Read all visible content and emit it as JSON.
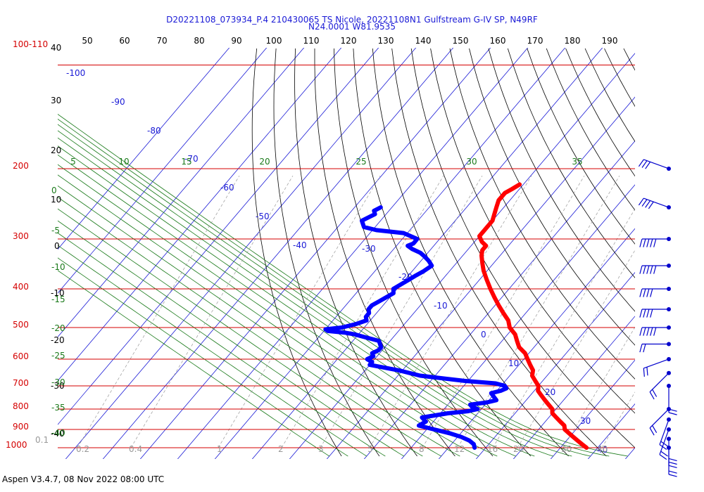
{
  "header": {
    "title_line1": "D20221108_073934_P.4 210430065 TS Nicole, 20221108N1 Gulfstream G-IV SP, N49RF",
    "title_line2": "N24.0001 W81.9535"
  },
  "footer": {
    "text": "Aspen V3.4.7, 08 Nov 2022  08:00 UTC"
  },
  "colors": {
    "isobar": "#d40000",
    "isotherm": "#1a1ad6",
    "dry_adiabat": "#000000",
    "moist_adiabat": "#1a7a1a",
    "mixing_ratio": "#999999",
    "temperature": "#ff0000",
    "dewpoint": "#0000ff",
    "wind": "#0000cc"
  },
  "chart_data": {
    "type": "skew-t",
    "pressure_labels": [
      "100-110",
      "200",
      "300",
      "400",
      "500",
      "600",
      "700",
      "800",
      "900",
      "1000"
    ],
    "top_scale_labels": [
      "50",
      "60",
      "70",
      "80",
      "90",
      "100",
      "110",
      "120",
      "130",
      "140",
      "150",
      "160",
      "170",
      "180",
      "190"
    ],
    "height_labels": [
      "40",
      "30",
      "20",
      "10",
      "0",
      "-10",
      "-20",
      "-30",
      "-40"
    ],
    "isotherm_labels": [
      "-100",
      "-90",
      "-80",
      "-70",
      "-60",
      "-50",
      "-40",
      "-30",
      "-20",
      "-10",
      "0",
      "10",
      "20",
      "30",
      "40"
    ],
    "moist_top_labels": [
      "5",
      "10",
      "15",
      "20",
      "25",
      "30",
      "35"
    ],
    "moist_left_labels": [
      "0",
      "-5",
      "-10",
      "-15",
      "-20",
      "-25",
      "-30",
      "-35",
      "-40"
    ],
    "mixing_ratio_labels": [
      "0.1",
      "0.2",
      "0.4",
      "1",
      "2",
      "3",
      "5",
      "8",
      "12",
      "16",
      "20",
      "30",
      "40"
    ],
    "temperature": [
      [
        219,
        -51
      ],
      [
        225,
        -52
      ],
      [
        230,
        -53
      ],
      [
        240,
        -53
      ],
      [
        250,
        -52
      ],
      [
        260,
        -51
      ],
      [
        270,
        -50
      ],
      [
        285,
        -50
      ],
      [
        295,
        -50
      ],
      [
        300,
        -49
      ],
      [
        305,
        -48
      ],
      [
        312,
        -46
      ],
      [
        320,
        -46
      ],
      [
        330,
        -45
      ],
      [
        345,
        -43
      ],
      [
        360,
        -41
      ],
      [
        380,
        -38
      ],
      [
        400,
        -35
      ],
      [
        420,
        -32
      ],
      [
        440,
        -29
      ],
      [
        460,
        -26
      ],
      [
        480,
        -23
      ],
      [
        500,
        -21
      ],
      [
        520,
        -18
      ],
      [
        540,
        -16
      ],
      [
        560,
        -14
      ],
      [
        580,
        -11
      ],
      [
        600,
        -9
      ],
      [
        620,
        -7
      ],
      [
        640,
        -5
      ],
      [
        660,
        -4
      ],
      [
        680,
        -2
      ],
      [
        700,
        0
      ],
      [
        720,
        1
      ],
      [
        740,
        3
      ],
      [
        760,
        5
      ],
      [
        780,
        7
      ],
      [
        800,
        9
      ],
      [
        820,
        10
      ],
      [
        840,
        12
      ],
      [
        860,
        14
      ],
      [
        880,
        16
      ],
      [
        900,
        17
      ],
      [
        920,
        19
      ],
      [
        940,
        21
      ],
      [
        960,
        23
      ],
      [
        980,
        25
      ],
      [
        1000,
        27
      ]
    ],
    "dewpoint": [
      [
        250,
        -83
      ],
      [
        255,
        -84
      ],
      [
        260,
        -83
      ],
      [
        270,
        -85
      ],
      [
        280,
        -83
      ],
      [
        285,
        -79
      ],
      [
        290,
        -71
      ],
      [
        300,
        -66
      ],
      [
        305,
        -66
      ],
      [
        308,
        -66
      ],
      [
        312,
        -67
      ],
      [
        318,
        -65
      ],
      [
        325,
        -62
      ],
      [
        332,
        -60
      ],
      [
        340,
        -58
      ],
      [
        350,
        -56
      ],
      [
        362,
        -57
      ],
      [
        370,
        -58
      ],
      [
        380,
        -59
      ],
      [
        390,
        -60
      ],
      [
        400,
        -61
      ],
      [
        410,
        -60
      ],
      [
        420,
        -61
      ],
      [
        430,
        -62
      ],
      [
        440,
        -63
      ],
      [
        450,
        -63
      ],
      [
        460,
        -62
      ],
      [
        470,
        -62
      ],
      [
        480,
        -61
      ],
      [
        490,
        -63
      ],
      [
        500,
        -66
      ],
      [
        505,
        -70
      ],
      [
        510,
        -69
      ],
      [
        515,
        -64
      ],
      [
        520,
        -61
      ],
      [
        525,
        -59
      ],
      [
        540,
        -53
      ],
      [
        550,
        -52
      ],
      [
        560,
        -51
      ],
      [
        570,
        -51
      ],
      [
        580,
        -52
      ],
      [
        590,
        -51
      ],
      [
        600,
        -52
      ],
      [
        610,
        -50
      ],
      [
        620,
        -50
      ],
      [
        640,
        -41
      ],
      [
        660,
        -34
      ],
      [
        680,
        -21
      ],
      [
        690,
        -12
      ],
      [
        700,
        -9
      ],
      [
        710,
        -8
      ],
      [
        720,
        -9
      ],
      [
        730,
        -11
      ],
      [
        740,
        -10
      ],
      [
        750,
        -9
      ],
      [
        760,
        -8
      ],
      [
        770,
        -10
      ],
      [
        780,
        -14
      ],
      [
        790,
        -13
      ],
      [
        800,
        -11
      ],
      [
        810,
        -13
      ],
      [
        820,
        -18
      ],
      [
        840,
        -24
      ],
      [
        860,
        -22
      ],
      [
        880,
        -23
      ],
      [
        900,
        -18
      ],
      [
        920,
        -13
      ],
      [
        940,
        -9
      ],
      [
        960,
        -6
      ],
      [
        980,
        -4
      ],
      [
        1000,
        -3
      ]
    ],
    "wind_barbs": [
      {
        "p": 200,
        "dir": "west-northwest",
        "speed_kt": 25
      },
      {
        "p": 250,
        "dir": "west-northwest",
        "speed_kt": 40
      },
      {
        "p": 300,
        "dir": "west",
        "speed_kt": 45
      },
      {
        "p": 350,
        "dir": "west",
        "speed_kt": 45
      },
      {
        "p": 400,
        "dir": "west",
        "speed_kt": 40
      },
      {
        "p": 450,
        "dir": "west",
        "speed_kt": 40
      },
      {
        "p": 500,
        "dir": "west",
        "speed_kt": 50
      },
      {
        "p": 550,
        "dir": "west",
        "speed_kt": 20
      },
      {
        "p": 600,
        "dir": "west-southwest",
        "speed_kt": 15
      },
      {
        "p": 650,
        "dir": "southwest",
        "speed_kt": 15
      },
      {
        "p": 700,
        "dir": "south",
        "speed_kt": 15
      },
      {
        "p": 800,
        "dir": "southwest",
        "speed_kt": 15
      },
      {
        "p": 850,
        "dir": "south-southwest",
        "speed_kt": 20
      },
      {
        "p": 900,
        "dir": "south-southwest",
        "speed_kt": 20
      },
      {
        "p": 950,
        "dir": "south",
        "speed_kt": 25
      },
      {
        "p": 1000,
        "dir": "south",
        "speed_kt": 15
      }
    ]
  }
}
